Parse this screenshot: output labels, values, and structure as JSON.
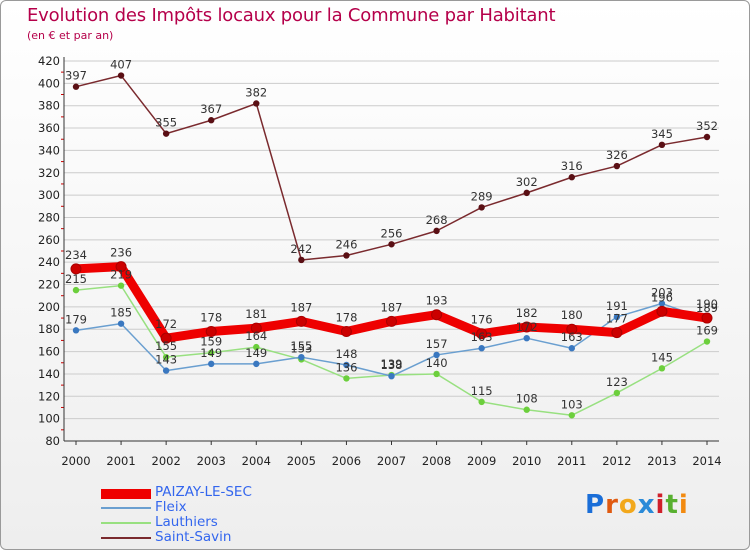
{
  "header": {
    "title": "Evolution des Impôts locaux pour la Commune par Habitant",
    "subtitle": "(en € et par an)"
  },
  "logo": {
    "text": "Proxiti",
    "colors": [
      "#1a6ed8",
      "#e05a10",
      "#f2a81c",
      "#2a8ad8",
      "#d0202a",
      "#58b030",
      "#f28a10"
    ]
  },
  "colors": {
    "title": "#b5004a",
    "legend_text": "#3366ee",
    "axis": "#333333",
    "grid": "#cccccc"
  },
  "chart_data": {
    "type": "line",
    "title": "Evolution des Impôts locaux pour la Commune par Habitant",
    "subtitle": "(en € et par an)",
    "x": [
      "2000",
      "2001",
      "2002",
      "2003",
      "2004",
      "2005",
      "2006",
      "2007",
      "2008",
      "2009",
      "2010",
      "2011",
      "2012",
      "2013",
      "2014"
    ],
    "ylim": [
      80,
      420
    ],
    "yticks": [
      80,
      100,
      120,
      140,
      160,
      180,
      200,
      220,
      240,
      260,
      280,
      300,
      320,
      340,
      360,
      380,
      400,
      420
    ],
    "grid": "horizontal",
    "legend_position": "bottom-left",
    "series": [
      {
        "name": "PAIZAY-LE-SEC",
        "values": [
          234,
          236,
          172,
          178,
          181,
          187,
          178,
          187,
          193,
          176,
          182,
          180,
          177,
          196,
          190
        ],
        "labels": [
          "234",
          "236",
          "172",
          "178",
          "181",
          "187",
          "178",
          "187",
          "193",
          "176",
          "182",
          "180",
          "177",
          "196",
          "190"
        ],
        "color": "#ee0000",
        "marker_color": "#cc0000"
      },
      {
        "name": "Fleix",
        "values": [
          179,
          185,
          143,
          149,
          149,
          155,
          148,
          138,
          157,
          163,
          172,
          163,
          191,
          203,
          189
        ],
        "labels": [
          "179",
          "185",
          "143",
          "149",
          "149",
          "155",
          "148",
          "138",
          "157",
          "163",
          "172",
          "163",
          "191",
          "203",
          "189"
        ],
        "color": "#6a9fd0",
        "marker_color": "#3a78c0"
      },
      {
        "name": "Lauthiers",
        "values": [
          215,
          219,
          155,
          159,
          164,
          153,
          136,
          139,
          140,
          115,
          108,
          103,
          123,
          145,
          169
        ],
        "labels": [
          "215",
          "219",
          "155",
          "159",
          "164",
          "153",
          "136",
          "139",
          "140",
          "115",
          "108",
          "103",
          "123",
          "145",
          "169"
        ],
        "color": "#98e080",
        "marker_color": "#6ccf3c"
      },
      {
        "name": "Saint-Savin",
        "values": [
          397,
          407,
          355,
          367,
          382,
          242,
          246,
          256,
          268,
          289,
          302,
          316,
          326,
          345,
          352
        ],
        "labels": [
          "397",
          "407",
          "355",
          "367",
          "382",
          "242",
          "246",
          "256",
          "268",
          "289",
          "302",
          "316",
          "326",
          "345",
          "352"
        ],
        "color": "#7a2a2e",
        "marker_color": "#5a0f14"
      }
    ]
  }
}
